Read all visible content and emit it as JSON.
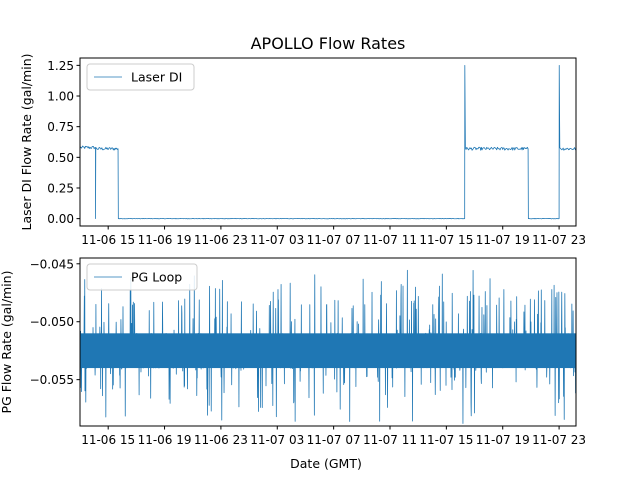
{
  "chart_data": [
    {
      "type": "line",
      "title": "APOLLO Flow Rates",
      "ylabel": "Laser DI Flow Rate (gal/min)",
      "xlabel": "",
      "x_tick_labels": [
        "11-06 15",
        "11-06 19",
        "11-06 23",
        "11-07 03",
        "11-07 07",
        "11-07 11",
        "11-07 15",
        "11-07 19",
        "11-07 23"
      ],
      "x_range_hours": [
        0,
        35.2
      ],
      "x_tick_hours": [
        2,
        6,
        10,
        14,
        18,
        22,
        26,
        30,
        34
      ],
      "y_ticks": [
        0.0,
        0.25,
        0.5,
        0.75,
        1.0,
        1.25
      ],
      "y_tick_labels": [
        "0.00",
        "0.25",
        "0.50",
        "0.75",
        "1.00",
        "1.25"
      ],
      "ylim": [
        -0.06,
        1.31
      ],
      "legend": {
        "label": "Laser DI",
        "placement": "top-left"
      },
      "series": [
        {
          "name": "Laser DI",
          "color": "#1f77b4",
          "points": [
            [
              0.0,
              0.58
            ],
            [
              1.1,
              0.58
            ],
            [
              1.1,
              0.0
            ],
            [
              1.12,
              0.58
            ],
            [
              2.7,
              0.57
            ],
            [
              2.72,
              0.0
            ],
            [
              27.3,
              0.0
            ],
            [
              27.31,
              1.25
            ],
            [
              27.35,
              0.58
            ],
            [
              31.8,
              0.57
            ],
            [
              31.82,
              0.0
            ],
            [
              34.0,
              0.0
            ],
            [
              34.01,
              1.25
            ],
            [
              34.05,
              0.58
            ],
            [
              35.2,
              0.57
            ]
          ]
        }
      ]
    },
    {
      "type": "line",
      "title": "",
      "ylabel": "PG Flow Rate (gal/min)",
      "xlabel": "Date (GMT)",
      "x_tick_labels": [
        "11-06 15",
        "11-06 19",
        "11-06 23",
        "11-07 03",
        "11-07 07",
        "11-07 11",
        "11-07 15",
        "11-07 19",
        "11-07 23"
      ],
      "x_range_hours": [
        0,
        35.2
      ],
      "x_tick_hours": [
        2,
        6,
        10,
        14,
        18,
        22,
        26,
        30,
        34
      ],
      "y_ticks": [
        -0.055,
        -0.05,
        -0.045
      ],
      "y_tick_labels": [
        "−0.055",
        "−0.050",
        "−0.045"
      ],
      "ylim": [
        -0.059,
        -0.0445
      ],
      "legend": {
        "label": "PG Loop",
        "placement": "top-left"
      },
      "series": [
        {
          "name": "PG Loop",
          "color": "#1f77b4",
          "typical_band": [
            -0.054,
            -0.051
          ],
          "min": -0.0588,
          "max": -0.0451
        }
      ]
    }
  ]
}
